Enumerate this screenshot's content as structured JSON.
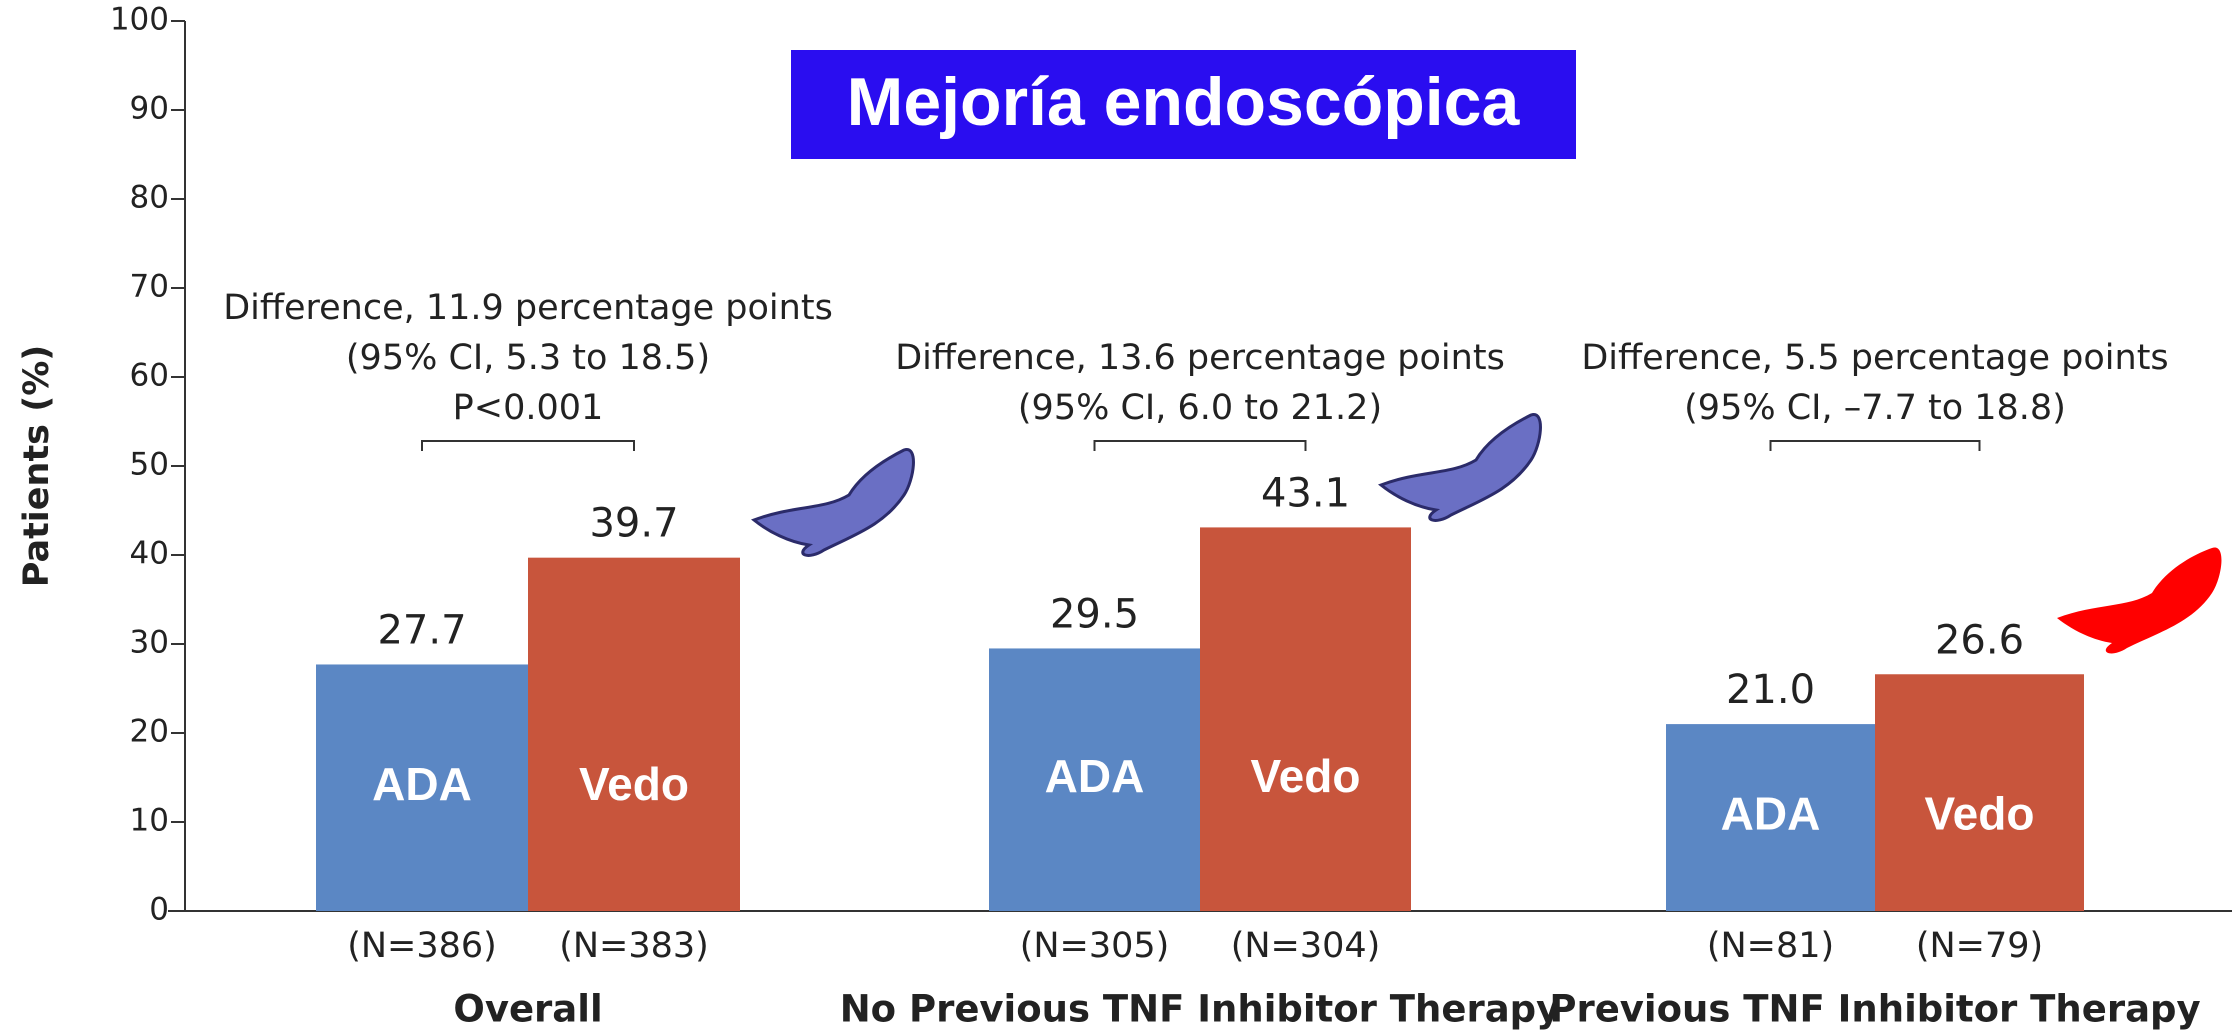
{
  "chart_data": {
    "type": "bar",
    "title": "Mejoría endoscópica",
    "y_label": "Patients (%)",
    "categories": [
      "Overall",
      "No Previous TNF Inhibitor Therapy",
      "Previous TNF Inhibitor Therapy"
    ],
    "series": [
      {
        "name": "ADA",
        "color": "#5b87c4",
        "values": [
          27.7,
          29.5,
          21.0
        ],
        "value_labels": [
          "27.7",
          "29.5",
          "21.0"
        ],
        "n_labels": [
          "(N=386)",
          "(N=305)",
          "(N=81)"
        ]
      },
      {
        "name": "Vedo",
        "color": "#c8553c",
        "values": [
          39.7,
          43.1,
          26.6
        ],
        "value_labels": [
          "39.7",
          "43.1",
          "26.6"
        ],
        "n_labels": [
          "(N=383)",
          "(N=304)",
          "(N=79)"
        ]
      }
    ],
    "annotations": [
      [
        "Difference, 11.9 percentage points",
        "(95% CI, 5.3 to 18.5)",
        "P<0.001"
      ],
      [
        "Difference, 13.6 percentage points",
        "(95% CI, 6.0 to 21.2)"
      ],
      [
        "Difference, 5.5 percentage points",
        "(95% CI, –7.7 to 18.8)"
      ]
    ],
    "ylim": [
      0,
      100
    ],
    "yticks": [
      0,
      10,
      20,
      30,
      40,
      50,
      60,
      70,
      80,
      90,
      100
    ]
  }
}
